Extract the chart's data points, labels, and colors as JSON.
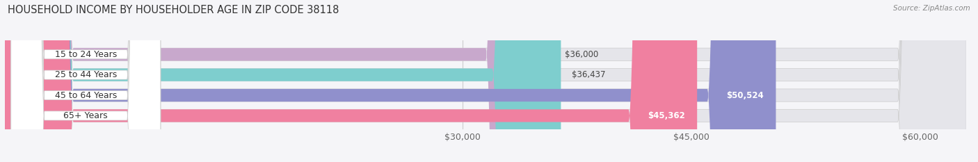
{
  "title": "HOUSEHOLD INCOME BY HOUSEHOLDER AGE IN ZIP CODE 38118",
  "source": "Source: ZipAtlas.com",
  "categories": [
    "15 to 24 Years",
    "25 to 44 Years",
    "45 to 64 Years",
    "65+ Years"
  ],
  "values": [
    36000,
    36437,
    50524,
    45362
  ],
  "bar_colors": [
    "#c8a8cc",
    "#7ecece",
    "#9090cc",
    "#f080a0"
  ],
  "bar_height": 0.62,
  "xmin": 0,
  "xmax": 63000,
  "xticks": [
    30000,
    45000,
    60000
  ],
  "xtick_labels": [
    "$30,000",
    "$45,000",
    "$60,000"
  ],
  "label_inside_threshold": 45000,
  "background_color": "#f5f5f8",
  "bar_bg_color": "#e5e5ea",
  "title_fontsize": 10.5,
  "tick_fontsize": 9,
  "value_fontsize": 8.5,
  "cat_fontsize": 9,
  "pill_color": "#ffffff",
  "pill_border": "#dddddd"
}
